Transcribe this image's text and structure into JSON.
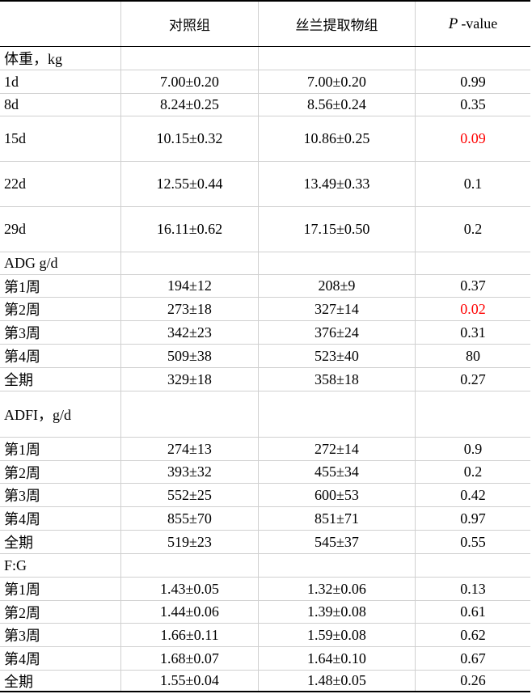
{
  "header": {
    "columns": [
      "对照组",
      "丝兰提取物组"
    ],
    "p_value": {
      "symbol": "P",
      "suffix": "-value"
    }
  },
  "rows": [
    {
      "label": "体重，kg"
    },
    {
      "label": "1d",
      "cells": [
        "7.00±0.20",
        "7.00±0.20",
        "0.99"
      ]
    },
    {
      "label": "8d",
      "cells": [
        "8.24±0.25",
        "8.56±0.24",
        "0.35"
      ]
    },
    {
      "label": "15d",
      "cells": [
        "10.15±0.32",
        "10.86±0.25",
        "0.09"
      ],
      "p_color": "#ff0000"
    },
    {
      "label": "22d",
      "cells": [
        "12.55±0.44",
        "13.49±0.33",
        "0.1"
      ]
    },
    {
      "label": "29d",
      "cells": [
        "16.11±0.62",
        "17.15±0.50",
        "0.2"
      ]
    },
    {
      "label": "ADG g/d"
    },
    {
      "label": "第1周",
      "cells": [
        "194±12",
        "208±9",
        "0.37"
      ]
    },
    {
      "label": "第2周",
      "cells": [
        "273±18",
        "327±14",
        "0.02"
      ],
      "p_color": "#ff0000"
    },
    {
      "label": "第3周",
      "cells": [
        "342±23",
        "376±24",
        "0.31"
      ]
    },
    {
      "label": "第4周",
      "cells": [
        "509±38",
        "523±40",
        "80"
      ]
    },
    {
      "label": "全期",
      "cells": [
        "329±18",
        "358±18",
        "0.27"
      ]
    },
    {
      "label": "ADFI，g/d"
    },
    {
      "label": "第1周",
      "cells": [
        "274±13",
        "272±14",
        "0.9"
      ]
    },
    {
      "label": "第2周",
      "cells": [
        "393±32",
        "455±34",
        "0.2"
      ]
    },
    {
      "label": "第3周",
      "cells": [
        "552±25",
        "600±53",
        "0.42"
      ]
    },
    {
      "label": "第4周",
      "cells": [
        "855±70",
        "851±71",
        "0.97"
      ]
    },
    {
      "label": "全期",
      "cells": [
        "519±23",
        "545±37",
        "0.55"
      ]
    },
    {
      "label": "F:G"
    },
    {
      "label": "第1周",
      "cells": [
        "1.43±0.05",
        "1.32±0.06",
        "0.13"
      ]
    },
    {
      "label": "第2周",
      "cells": [
        "1.44±0.06",
        "1.39±0.08",
        "0.61"
      ]
    },
    {
      "label": "第3周",
      "cells": [
        "1.66±0.11",
        "1.59±0.08",
        "0.62"
      ]
    },
    {
      "label": "第4周",
      "cells": [
        "1.68±0.07",
        "1.64±0.10",
        "0.67"
      ]
    },
    {
      "label": "全期",
      "cells": [
        "1.55±0.04",
        "1.48±0.05",
        "0.26"
      ]
    }
  ]
}
